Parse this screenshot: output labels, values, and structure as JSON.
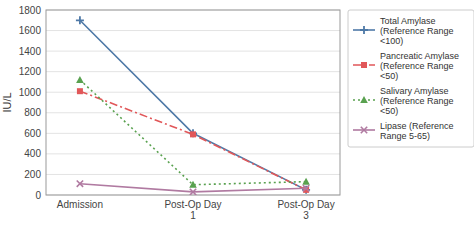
{
  "chart_data": {
    "type": "line",
    "categories": [
      "Admission",
      "Post-Op Day\n1",
      "Post-Op Day\n3"
    ],
    "series": [
      {
        "name": "Total Amylase\n(Reference Range\n<100)",
        "values": [
          1700,
          600,
          50
        ],
        "marker": "plus",
        "line_style": "solid"
      },
      {
        "name": "Pancreatic Amylase\n(Reference Range\n<50)",
        "values": [
          1010,
          590,
          50
        ],
        "marker": "square",
        "line_style": "dashdot"
      },
      {
        "name": "Salivary Amylase\n(Reference Range\n<50)",
        "values": [
          1120,
          100,
          130
        ],
        "marker": "triangle",
        "line_style": "dotted"
      },
      {
        "name": "Lipase (Reference\nRange 5-65)",
        "values": [
          110,
          30,
          65
        ],
        "marker": "x",
        "line_style": "solid"
      }
    ],
    "y_label": "IU/L",
    "ylim": [
      0,
      1800
    ],
    "yticks": [
      0,
      200,
      400,
      600,
      800,
      1000,
      1200,
      1400,
      1600,
      1800
    ],
    "grid": true,
    "legend": "right"
  }
}
